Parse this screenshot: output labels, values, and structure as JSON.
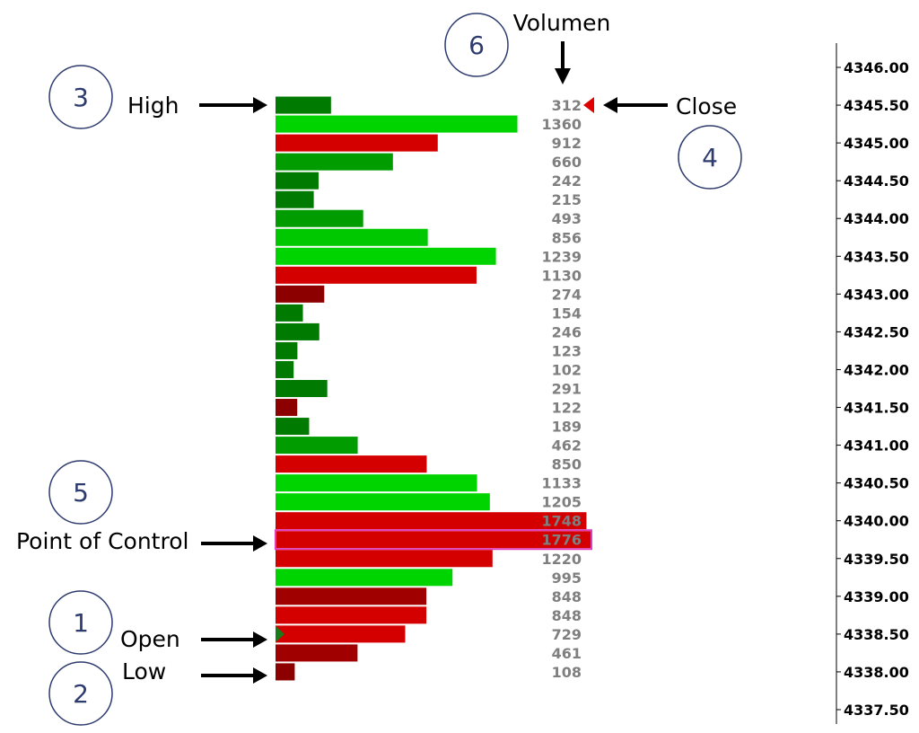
{
  "chart_data": {
    "type": "bar",
    "orientation": "horizontal",
    "ylim": [
      4337.5,
      4346.0
    ],
    "ticks": [
      "4346.00",
      "4345.50",
      "4345.00",
      "4344.50",
      "4344.00",
      "4343.50",
      "4343.00",
      "4342.50",
      "4342.00",
      "4341.50",
      "4341.00",
      "4340.50",
      "4340.00",
      "4339.50",
      "4339.00",
      "4338.50",
      "4338.00",
      "4337.50"
    ],
    "price_step": 0.25,
    "rows": [
      {
        "price": 4345.5,
        "volume": 312,
        "color": "#007a00"
      },
      {
        "price": 4345.25,
        "volume": 1360,
        "color": "#00d400"
      },
      {
        "price": 4345.0,
        "volume": 912,
        "color": "#d40000"
      },
      {
        "price": 4344.75,
        "volume": 660,
        "color": "#009c00"
      },
      {
        "price": 4344.5,
        "volume": 242,
        "color": "#007a00"
      },
      {
        "price": 4344.25,
        "volume": 215,
        "color": "#007a00"
      },
      {
        "price": 4344.0,
        "volume": 493,
        "color": "#009c00"
      },
      {
        "price": 4343.75,
        "volume": 856,
        "color": "#00c800"
      },
      {
        "price": 4343.5,
        "volume": 1239,
        "color": "#00d400"
      },
      {
        "price": 4343.25,
        "volume": 1130,
        "color": "#d40000"
      },
      {
        "price": 4343.0,
        "volume": 274,
        "color": "#8c0000"
      },
      {
        "price": 4342.75,
        "volume": 154,
        "color": "#007a00"
      },
      {
        "price": 4342.5,
        "volume": 246,
        "color": "#007a00"
      },
      {
        "price": 4342.25,
        "volume": 123,
        "color": "#007a00"
      },
      {
        "price": 4342.0,
        "volume": 102,
        "color": "#007a00"
      },
      {
        "price": 4341.75,
        "volume": 291,
        "color": "#007a00"
      },
      {
        "price": 4341.5,
        "volume": 122,
        "color": "#8c0000"
      },
      {
        "price": 4341.25,
        "volume": 189,
        "color": "#007a00"
      },
      {
        "price": 4341.0,
        "volume": 462,
        "color": "#009c00"
      },
      {
        "price": 4340.75,
        "volume": 850,
        "color": "#d40000"
      },
      {
        "price": 4340.5,
        "volume": 1133,
        "color": "#00d400"
      },
      {
        "price": 4340.25,
        "volume": 1205,
        "color": "#00d400"
      },
      {
        "price": 4340.0,
        "volume": 1748,
        "color": "#d40000"
      },
      {
        "price": 4339.75,
        "volume": 1776,
        "color": "#d40000",
        "poc": true
      },
      {
        "price": 4339.5,
        "volume": 1220,
        "color": "#d40000"
      },
      {
        "price": 4339.25,
        "volume": 995,
        "color": "#00d400"
      },
      {
        "price": 4339.0,
        "volume": 848,
        "color": "#a00000"
      },
      {
        "price": 4338.75,
        "volume": 848,
        "color": "#d40000"
      },
      {
        "price": 4338.5,
        "volume": 729,
        "color": "#d40000"
      },
      {
        "price": 4338.25,
        "volume": 461,
        "color": "#a00000"
      },
      {
        "price": 4338.0,
        "volume": 108,
        "color": "#8c0000"
      }
    ],
    "poc_outline_color": "#e040c0",
    "open_marker_color": "#1a7a1a",
    "close_marker_color": "#e00000",
    "annotations": [
      {
        "num": "1",
        "label": "Open"
      },
      {
        "num": "2",
        "label": "Low"
      },
      {
        "num": "3",
        "label": "High"
      },
      {
        "num": "4",
        "label": "Close"
      },
      {
        "num": "5",
        "label": "Point of Control"
      },
      {
        "num": "6",
        "label": "Volumen"
      }
    ]
  }
}
